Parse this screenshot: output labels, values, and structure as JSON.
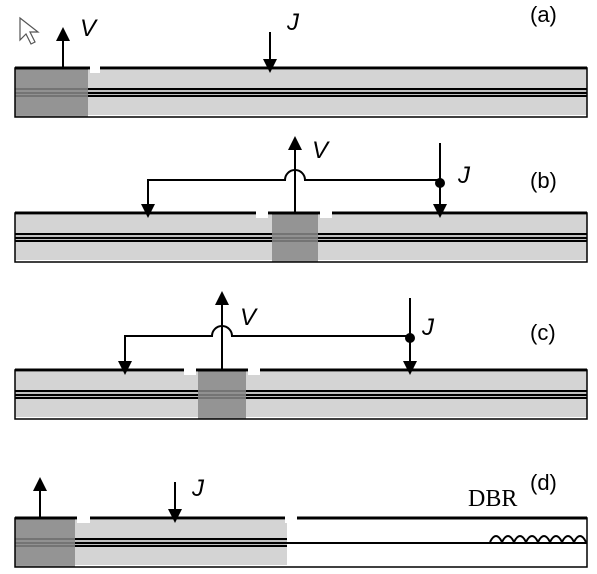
{
  "panels": [
    {
      "label": "(a)",
      "texts": [
        "V",
        "J"
      ]
    },
    {
      "label": "(b)",
      "texts": [
        "V",
        "J"
      ]
    },
    {
      "label": "(c)",
      "texts": [
        "V",
        "J"
      ]
    },
    {
      "label": "(d)",
      "texts": [
        "J",
        "DBR"
      ]
    }
  ]
}
